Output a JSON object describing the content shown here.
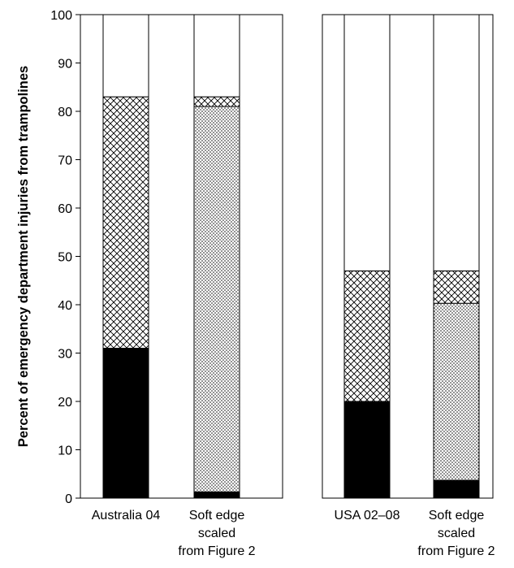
{
  "chart_data": [
    {
      "type": "bar",
      "stacked": true,
      "ylabel": "Percent of emergency department injuries from trampolines",
      "ylim": [
        0,
        100
      ],
      "yticks": [
        "0",
        "10",
        "20",
        "30",
        "40",
        "50",
        "60",
        "70",
        "80",
        "90",
        "100"
      ],
      "grid": false,
      "categories": [
        [
          "Australia 04"
        ],
        [
          "Soft edge",
          "scaled",
          "from Figure 2"
        ]
      ],
      "series": [
        {
          "pattern": "solid-black",
          "values": [
            31,
            1.3
          ]
        },
        {
          "pattern": "dots",
          "values": [
            0,
            79.7
          ]
        },
        {
          "pattern": "crosshatch",
          "values": [
            52,
            2
          ]
        },
        {
          "pattern": "blank",
          "values": [
            17,
            17
          ]
        }
      ]
    },
    {
      "type": "bar",
      "stacked": true,
      "ylim": [
        0,
        100
      ],
      "grid": false,
      "categories": [
        [
          "USA 02–08"
        ],
        [
          "Soft edge",
          "scaled",
          "from Figure 2"
        ]
      ],
      "series": [
        {
          "pattern": "solid-black",
          "values": [
            20,
            3.7
          ]
        },
        {
          "pattern": "dots",
          "values": [
            0,
            36.6
          ]
        },
        {
          "pattern": "crosshatch",
          "values": [
            27,
            6.7
          ]
        },
        {
          "pattern": "blank",
          "values": [
            53,
            53
          ]
        }
      ]
    }
  ]
}
